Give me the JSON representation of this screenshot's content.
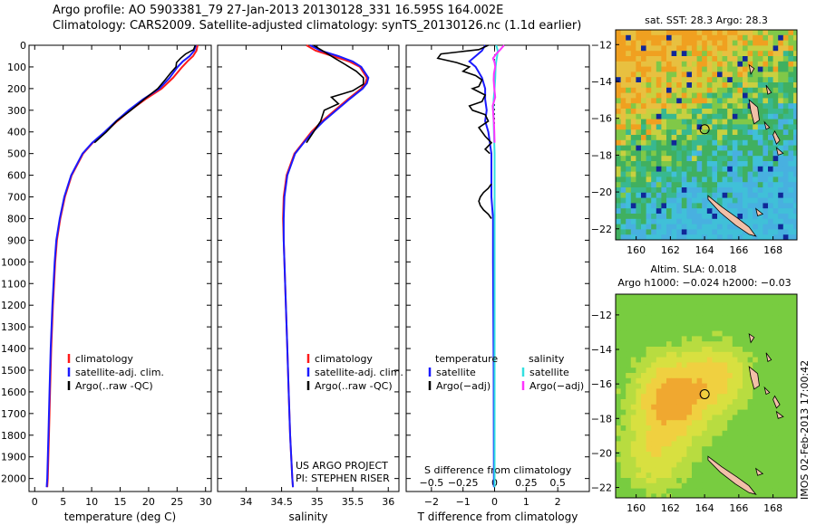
{
  "header": {
    "line1": "Argo profile: AO 5903381_79 27-Jan-2013 20130128_331 16.595S 164.002E",
    "line2": "Climatology: CARS2009. Satellite-adjusted climatology: synTS_20130126.nc (1.1d earlier)"
  },
  "stamp": "IMOS 02-Feb-2013 17:00:42",
  "colors": {
    "climatology": "#ff1a1a",
    "satellite": "#1a1aff",
    "argo": "#000000",
    "sat_salinity": "#33e0e0",
    "argo_salinity": "#ff33ff",
    "land": "#f2c0a8"
  },
  "chart_data": [
    {
      "id": "temperature",
      "type": "line",
      "title": "",
      "xlabel": "temperature (deg C)",
      "ylabel": "",
      "xlim": [
        -1,
        31
      ],
      "ylim": [
        2060,
        0
      ],
      "xticks": [
        0,
        5,
        10,
        15,
        20,
        25,
        30
      ],
      "xtick_labels": [
        "0",
        "5",
        "10",
        "15",
        "20",
        "25",
        "30"
      ],
      "yticks": [
        0,
        100,
        200,
        300,
        400,
        500,
        600,
        700,
        800,
        900,
        1000,
        1100,
        1200,
        1300,
        1400,
        1500,
        1600,
        1700,
        1800,
        1900,
        2000
      ],
      "ytick_labels": [
        "0",
        "100",
        "200",
        "300",
        "400",
        "500",
        "600",
        "700",
        "800",
        "900",
        "1000",
        "1100",
        "1200",
        "1300",
        "1400",
        "1500",
        "1600",
        "1700",
        "1800",
        "1900",
        "2000"
      ],
      "legend": [
        "climatology",
        "satellite-adj. clim.",
        "Argo(..raw -QC)"
      ],
      "series": [
        {
          "name": "climatology",
          "color": "red",
          "y": [
            0,
            25,
            50,
            75,
            100,
            150,
            200,
            250,
            300,
            350,
            400,
            450,
            500,
            600,
            700,
            800,
            900,
            1000,
            1200,
            1400,
            1600,
            1800,
            2000,
            2040
          ],
          "values": [
            28.6,
            28.4,
            27.8,
            26.8,
            25.9,
            24.3,
            22.3,
            19.4,
            16.8,
            14.5,
            12.4,
            10.2,
            8.5,
            6.5,
            5.3,
            4.5,
            3.9,
            3.6,
            3.2,
            2.9,
            2.7,
            2.5,
            2.3,
            2.2
          ]
        },
        {
          "name": "satellite-adj. clim.",
          "color": "blue",
          "y": [
            0,
            25,
            50,
            75,
            100,
            150,
            200,
            250,
            300,
            350,
            400,
            450,
            500,
            600,
            700,
            800,
            900,
            1000,
            1200,
            1400,
            1600,
            1800,
            2000,
            2040
          ],
          "values": [
            28.3,
            28.0,
            27.2,
            26.0,
            25.1,
            23.7,
            21.9,
            19.0,
            16.5,
            14.3,
            12.3,
            10.1,
            8.4,
            6.4,
            5.2,
            4.4,
            3.8,
            3.5,
            3.1,
            2.8,
            2.6,
            2.4,
            2.2,
            2.1
          ]
        },
        {
          "name": "Argo(..raw -QC)",
          "color": "black",
          "y": [
            0,
            20,
            40,
            60,
            80,
            100,
            130,
            160,
            200,
            250,
            300,
            350,
            400,
            450
          ],
          "values": [
            28.2,
            27.9,
            26.5,
            25.6,
            24.9,
            24.8,
            23.8,
            22.9,
            21.6,
            19.2,
            16.9,
            14.4,
            12.6,
            10.5
          ]
        }
      ]
    },
    {
      "id": "salinity",
      "type": "line",
      "title": "",
      "xlabel": "salinity",
      "ylabel": "",
      "xlim": [
        33.6,
        36.15
      ],
      "ylim": [
        2060,
        0
      ],
      "xticks": [
        34,
        34.5,
        35,
        35.5,
        36
      ],
      "xtick_labels": [
        "34",
        "34.5",
        "35",
        "35.5",
        "36"
      ],
      "legend": [
        "climatology",
        "satellite-adj. clim.",
        "Argo(..raw -QC)"
      ],
      "annotation": [
        "US ARGO PROJECT",
        "PI: STEPHEN RISER"
      ],
      "series": [
        {
          "name": "climatology",
          "color": "red",
          "y": [
            0,
            25,
            50,
            75,
            100,
            150,
            175,
            200,
            250,
            300,
            350,
            400,
            450,
            500,
            600,
            700,
            800,
            900,
            1000,
            1200,
            1400,
            1600,
            1800,
            2000,
            2040
          ],
          "values": [
            34.85,
            34.98,
            35.22,
            35.45,
            35.6,
            35.7,
            35.68,
            35.62,
            35.43,
            35.25,
            35.07,
            34.92,
            34.8,
            34.68,
            34.57,
            34.53,
            34.52,
            34.53,
            34.54,
            34.56,
            34.58,
            34.6,
            34.62,
            34.65,
            34.66
          ]
        },
        {
          "name": "satellite-adj. clim.",
          "color": "blue",
          "y": [
            0,
            25,
            50,
            75,
            100,
            150,
            175,
            200,
            250,
            300,
            350,
            400,
            450,
            500,
            600,
            700,
            800,
            900,
            1000,
            1200,
            1400,
            1600,
            1800,
            2000,
            2040
          ],
          "values": [
            34.9,
            35.05,
            35.3,
            35.5,
            35.62,
            35.72,
            35.7,
            35.64,
            35.45,
            35.27,
            35.09,
            34.94,
            34.81,
            34.69,
            34.58,
            34.54,
            34.53,
            34.53,
            34.54,
            34.56,
            34.58,
            34.6,
            34.62,
            34.65,
            34.66
          ]
        },
        {
          "name": "Argo(..raw -QC)",
          "color": "black",
          "y": [
            0,
            30,
            60,
            90,
            120,
            150,
            180,
            210,
            240,
            270,
            300,
            350,
            400,
            450
          ],
          "values": [
            34.95,
            35.1,
            35.25,
            35.4,
            35.55,
            35.65,
            35.65,
            35.5,
            35.2,
            35.3,
            35.1,
            35.05,
            34.95,
            34.85
          ]
        }
      ]
    },
    {
      "id": "difference",
      "type": "line",
      "title": "",
      "xlabel": "T difference from climatology",
      "xlabel2": "S difference from climatology",
      "xlim": [
        -2.8,
        3.0
      ],
      "ylim": [
        2060,
        0
      ],
      "xticks": [
        -2,
        -1,
        0,
        1,
        2
      ],
      "xtick_labels": [
        "−2",
        "−1",
        "0",
        "1",
        "2"
      ],
      "sticks": [
        -0.5,
        -0.25,
        0,
        0.25,
        0.5
      ],
      "stick_labels": [
        "−0.5",
        "−0.25",
        "0",
        "0.25",
        "0.5"
      ],
      "legend_temperature": [
        "temperature",
        "satellite",
        "Argo(−adj)"
      ],
      "legend_salinity": [
        "salinity",
        "satellite",
        "Argo(−adj)"
      ],
      "series": [
        {
          "name": "T satellite",
          "color": "blue",
          "y": [
            0,
            25,
            50,
            75,
            100,
            150,
            200,
            250,
            300,
            350,
            400,
            450,
            500,
            600,
            700,
            800,
            1000,
            1500,
            2040
          ],
          "values": [
            -0.3,
            -0.4,
            -0.6,
            -0.8,
            -0.6,
            -0.4,
            -0.3,
            -0.3,
            -0.25,
            -0.3,
            -0.2,
            -0.15,
            -0.1,
            -0.1,
            -0.1,
            -0.05,
            -0.05,
            -0.03,
            -0.02
          ]
        },
        {
          "name": "T Argo",
          "color": "black",
          "y": [
            0,
            20,
            40,
            60,
            80,
            100,
            120,
            140,
            160,
            190,
            200,
            230,
            260,
            280,
            300,
            320,
            350,
            380,
            420,
            450,
            480,
            500
          ],
          "values": [
            -0.2,
            -0.5,
            -1.7,
            -1.8,
            -1.2,
            -0.8,
            -1.0,
            -0.6,
            -0.4,
            -0.5,
            -0.7,
            -0.3,
            -0.4,
            -0.8,
            -0.7,
            -0.3,
            -0.2,
            -0.5,
            -0.3,
            -0.1,
            -0.3,
            -0.15
          ]
        },
        {
          "name": "T Argo deep",
          "color": "black",
          "y": [
            640,
            660,
            680,
            700,
            720,
            740,
            760,
            780,
            800
          ],
          "values": [
            -0.1,
            -0.2,
            -0.35,
            -0.45,
            -0.5,
            -0.45,
            -0.35,
            -0.2,
            -0.1
          ]
        },
        {
          "name": "S satellite",
          "color": "cyan",
          "y": [
            0,
            25,
            50,
            75,
            100,
            150,
            200,
            250,
            300,
            400,
            500,
            700,
            1000,
            1500,
            2040
          ],
          "values": [
            0.05,
            0.1,
            0.08,
            0.05,
            0.03,
            0.02,
            0.0,
            -0.03,
            -0.04,
            -0.02,
            0.0,
            0.0,
            0.0,
            0.0,
            0.0
          ]
        },
        {
          "name": "S Argo",
          "color": "magenta",
          "y": [
            0,
            20,
            40,
            60,
            80,
            100,
            130,
            160,
            200,
            240,
            280,
            320,
            360,
            400,
            450
          ],
          "values": [
            0.3,
            0.18,
            0.05,
            -0.05,
            0.0,
            0.02,
            -0.02,
            -0.03,
            -0.01,
            0.02,
            -0.06,
            -0.04,
            -0.02,
            -0.01,
            0.0
          ]
        }
      ]
    },
    {
      "id": "sst-map",
      "type": "heatmap",
      "title": "sat. SST: 28.3 Argo: 28.3",
      "xticks": [
        160,
        162,
        164,
        166,
        168
      ],
      "xtick_labels": [
        "160",
        "162",
        "164",
        "166",
        "168"
      ],
      "xlim": [
        158.8,
        169.4
      ],
      "yticks": [
        -12,
        -14,
        -16,
        -18,
        -20,
        -22
      ],
      "ytick_labels": [
        "−12",
        "−14",
        "−16",
        "−18",
        "−20",
        "−22"
      ],
      "ylim": [
        -22.6,
        -11.2
      ],
      "argo_position": [
        164.002,
        -16.595
      ]
    },
    {
      "id": "sla-map",
      "type": "heatmap",
      "title": "Altim. SLA: 0.018",
      "subtitle": "Argo h1000: −0.024 h2000: −0.03",
      "xticks": [
        160,
        162,
        164,
        166,
        168
      ],
      "xtick_labels": [
        "160",
        "162",
        "164",
        "166",
        "168"
      ],
      "xlim": [
        158.8,
        169.4
      ],
      "yticks": [
        -12,
        -14,
        -16,
        -18,
        -20,
        -22
      ],
      "ytick_labels": [
        "−12",
        "−14",
        "−16",
        "−18",
        "−20",
        "−22"
      ],
      "ylim": [
        -22.6,
        -10.8
      ],
      "argo_position": [
        164.002,
        -16.595
      ]
    }
  ]
}
